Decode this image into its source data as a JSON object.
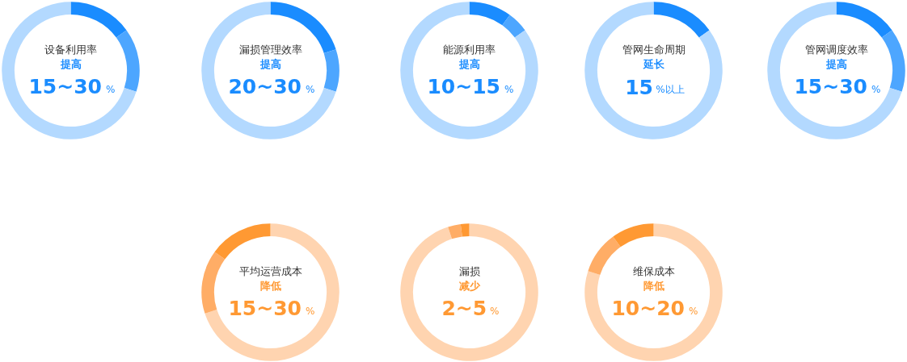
{
  "chart_data": [
    {
      "type": "donut",
      "title": "设备利用率",
      "subtitle": "提高",
      "annotations": [
        "15~30%"
      ],
      "categories": [
        null,
        null,
        null
      ],
      "values": [
        15,
        15,
        70
      ],
      "colors": [
        "#1a8cff",
        "#4da6ff",
        "#b3d9ff"
      ]
    },
    {
      "type": "donut",
      "title": "漏损管理效率",
      "subtitle": "提高",
      "annotations": [
        "20~30%"
      ],
      "categories": [
        null,
        null,
        null
      ],
      "values": [
        20,
        10,
        70
      ],
      "colors": [
        "#1a8cff",
        "#4da6ff",
        "#b3d9ff"
      ]
    },
    {
      "type": "donut",
      "title": "能源利用率",
      "subtitle": "提高",
      "annotations": [
        "10~15%"
      ],
      "categories": [
        null,
        null,
        null
      ],
      "values": [
        10,
        5,
        85
      ],
      "colors": [
        "#1a8cff",
        "#4da6ff",
        "#b3d9ff"
      ]
    },
    {
      "type": "donut",
      "title": "管网生命周期",
      "subtitle": "延长",
      "annotations": [
        "15%以上"
      ],
      "categories": [
        null,
        null
      ],
      "values": [
        15,
        85
      ],
      "colors": [
        "#1a8cff",
        "#b3d9ff"
      ]
    },
    {
      "type": "donut",
      "title": "管网调度效率",
      "subtitle": "提高",
      "annotations": [
        "15~30%"
      ],
      "categories": [
        null,
        null,
        null
      ],
      "values": [
        15,
        15,
        70
      ],
      "colors": [
        "#1a8cff",
        "#4da6ff",
        "#b3d9ff"
      ]
    },
    {
      "type": "donut",
      "title": "平均运营成本",
      "subtitle": "降低",
      "annotations": [
        "15~30%"
      ],
      "categories": [
        null,
        null,
        null
      ],
      "values": [
        70,
        15,
        15
      ],
      "colors": [
        "#ffd4b0",
        "#ffad66",
        "#ff9933"
      ]
    },
    {
      "type": "donut",
      "title": "漏损",
      "subtitle": "减少",
      "annotations": [
        "2~5%"
      ],
      "categories": [
        null,
        null,
        null
      ],
      "values": [
        95,
        3,
        2
      ],
      "colors": [
        "#ffd4b0",
        "#ffad66",
        "#ff9933"
      ]
    },
    {
      "type": "donut",
      "title": "维保成本",
      "subtitle": "降低",
      "annotations": [
        "10~20%"
      ],
      "categories": [
        null,
        null,
        null
      ],
      "values": [
        80,
        10,
        10
      ],
      "colors": [
        "#ffd4b0",
        "#ffad66",
        "#ff9933"
      ]
    }
  ]
}
